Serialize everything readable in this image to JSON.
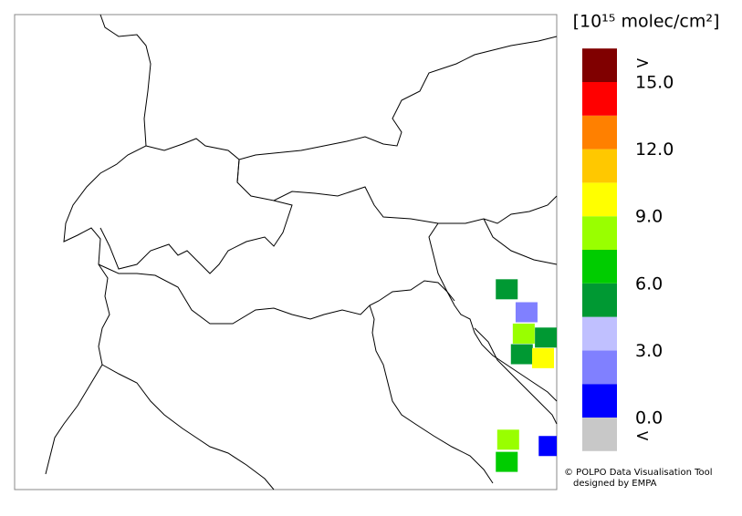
{
  "map": {
    "lonlim": [
      5.0,
      16.5
    ],
    "latlim": [
      42.5,
      48.5
    ],
    "cells": [
      {
        "lon": 15.44,
        "lat": 45.03,
        "value": 5.25
      },
      {
        "lon": 15.86,
        "lat": 44.74,
        "value": 2.25
      },
      {
        "lon": 15.8,
        "lat": 44.47,
        "value": 8.25
      },
      {
        "lon": 16.27,
        "lat": 44.42,
        "value": 5.25
      },
      {
        "lon": 15.76,
        "lat": 44.21,
        "value": 5.25
      },
      {
        "lon": 16.21,
        "lat": 44.16,
        "value": 9.75
      },
      {
        "lon": 15.47,
        "lat": 43.13,
        "value": 8.25
      },
      {
        "lon": 15.44,
        "lat": 42.85,
        "value": 6.75
      },
      {
        "lon": 16.35,
        "lat": 43.05,
        "value": 0.75
      }
    ]
  },
  "colorbar": {
    "unit": "[10¹⁵ molec/cm²]",
    "levels": [
      0,
      1.5,
      3,
      4.5,
      6,
      7.5,
      9,
      10.5,
      12,
      13.5,
      15
    ],
    "colors": [
      "#0000ff",
      "#8080ff",
      "#c0c0ff",
      "#009933",
      "#00cc00",
      "#99ff00",
      "#ffff00",
      "#ffc800",
      "#ff8000",
      "#ff0000"
    ],
    "under_color": "#c8c8c8",
    "over_color": "#800000",
    "under_label": "<",
    "over_label": ">",
    "ticks": [
      {
        "value": 0,
        "label": "0.0"
      },
      {
        "value": 3,
        "label": "3.0"
      },
      {
        "value": 6,
        "label": "6.0"
      },
      {
        "value": 9,
        "label": "9.0"
      },
      {
        "value": 12,
        "label": "12.0"
      },
      {
        "value": 15,
        "label": "15.0"
      }
    ]
  },
  "credit": [
    "© POLPO Data Visualisation Tool",
    "designed by EMPA"
  ]
}
